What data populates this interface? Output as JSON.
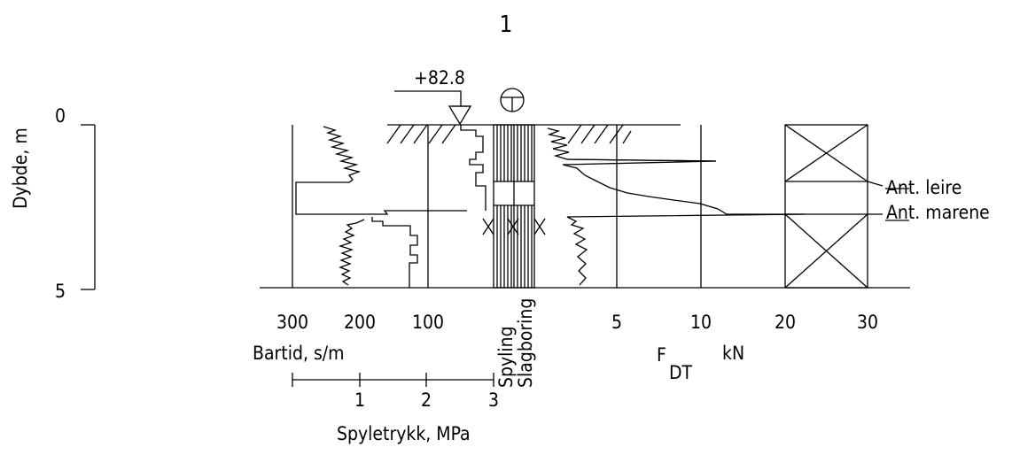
{
  "figure": {
    "number": "1",
    "elevation_label": "+82.8",
    "depth_axis": {
      "label": "Dybde, m",
      "ticks": [
        "0",
        "5"
      ],
      "range_m": [
        0,
        5
      ]
    },
    "bartid_axis": {
      "label": "Bartid, s/m",
      "ticks": [
        "300",
        "200",
        "100"
      ]
    },
    "spyletrykk_axis": {
      "label": "Spyletrykk, MPa",
      "ticks": [
        "1",
        "2",
        "3"
      ]
    },
    "columns": {
      "spyling": "Spyling",
      "slagboring": "Slagboring"
    },
    "force_axis": {
      "label_main": "F",
      "label_sub": "DT",
      "label_unit": "kN",
      "ticks": [
        "5",
        "10",
        "20",
        "30"
      ]
    },
    "layers": [
      {
        "label": "Ant. leire",
        "depth_m": 1.75
      },
      {
        "label": "Ant. marene",
        "depth_m": 2.75
      }
    ],
    "colors": {
      "ink": "#000000",
      "background": "#ffffff"
    }
  }
}
